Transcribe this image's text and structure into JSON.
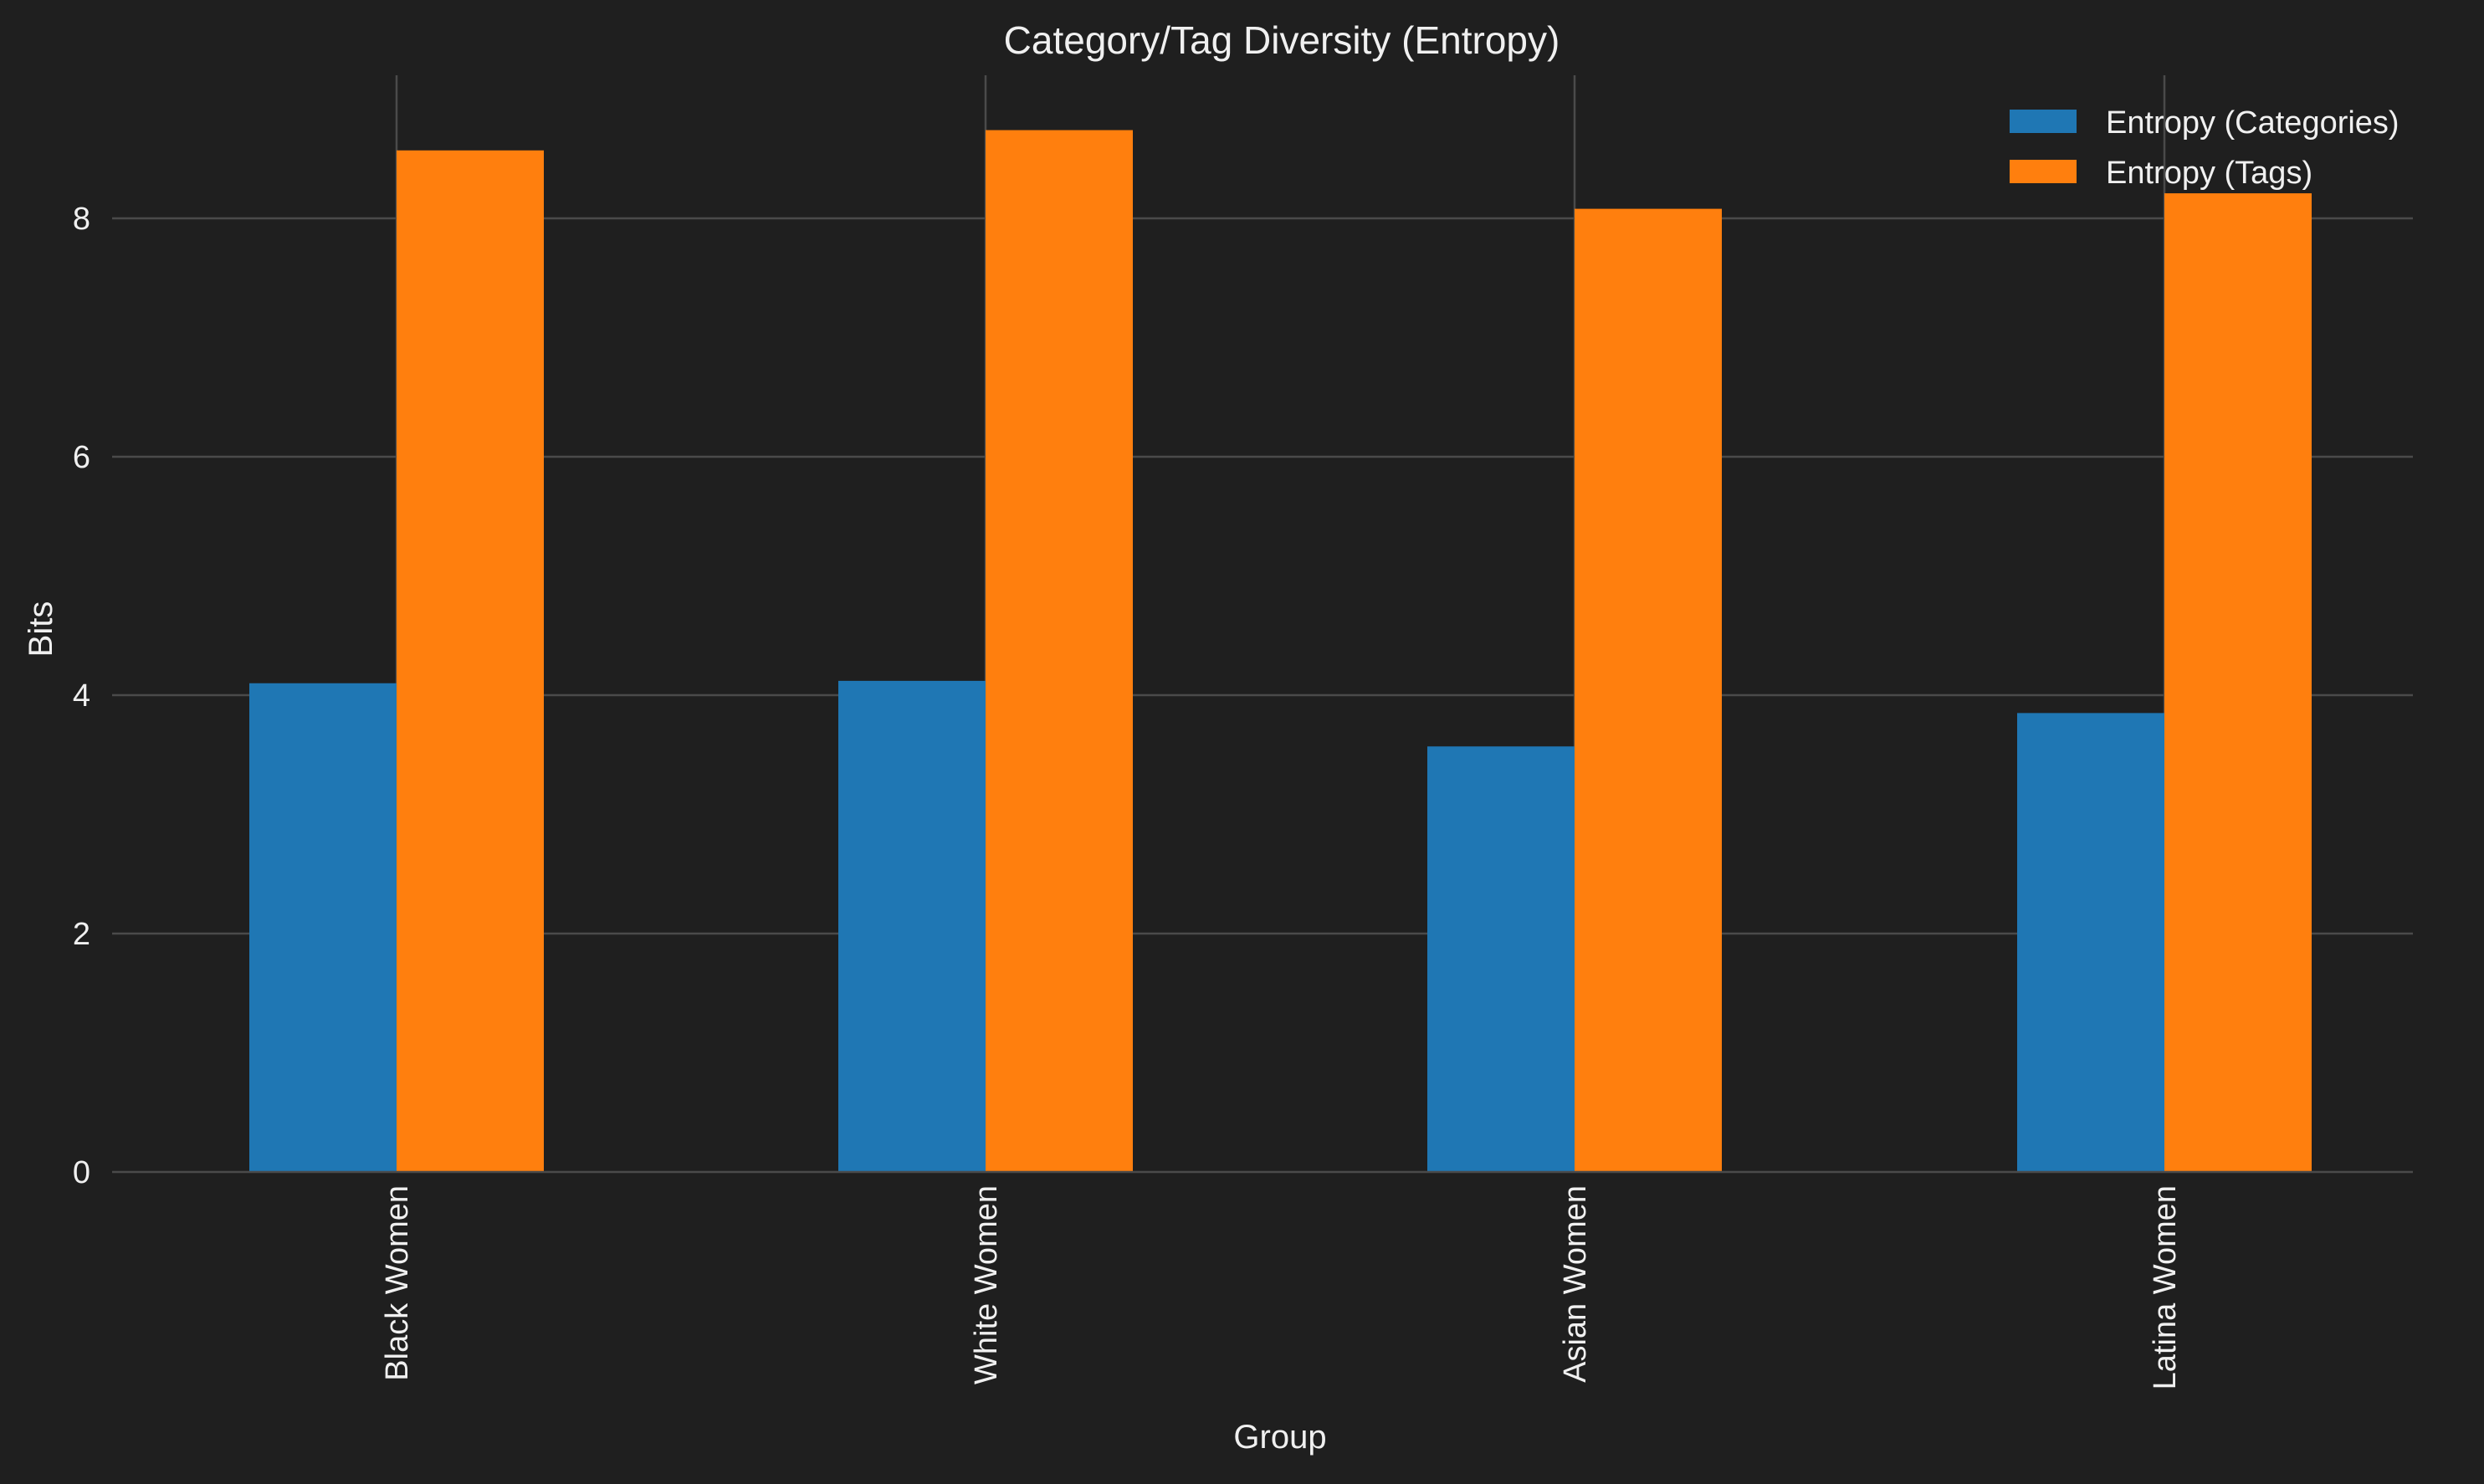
{
  "colors": {
    "background": "#1f1f1f",
    "grid": "#4a4a4a",
    "text": "#f0f0f0",
    "categories_series": "#1f77b4",
    "tags_series": "#ff7f0e"
  },
  "chart_data": {
    "type": "bar",
    "title": "Category/Tag Diversity (Entropy)",
    "xlabel": "Group",
    "ylabel": "Bits",
    "categories": [
      "Black Women",
      "White Women",
      "Asian Women",
      "Latina Women"
    ],
    "series": [
      {
        "name": "Entropy (Categories)",
        "values": [
          4.1,
          4.12,
          3.57,
          3.85
        ]
      },
      {
        "name": "Entropy (Tags)",
        "values": [
          8.57,
          8.74,
          8.08,
          8.21
        ]
      }
    ],
    "ylim": [
      0,
      9.2
    ],
    "yticks": [
      0,
      2,
      4,
      6,
      8
    ],
    "grid": "y-lines-plus-category-lines",
    "legend_position": "top-right"
  }
}
